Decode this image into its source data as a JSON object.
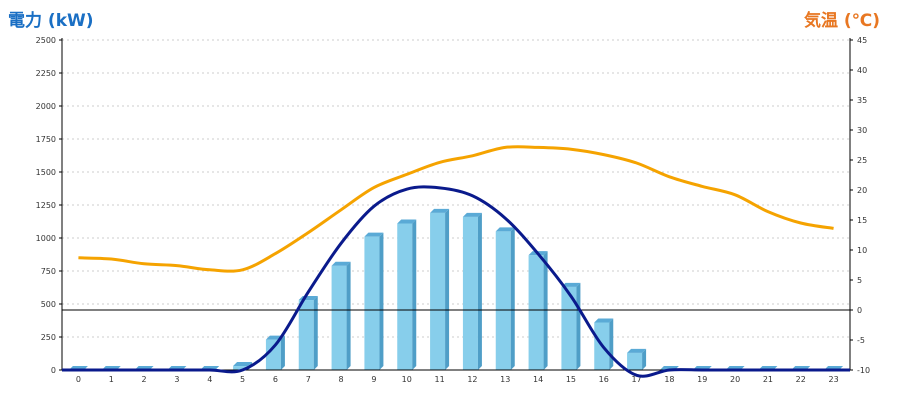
{
  "chart_data": {
    "type": "bar",
    "title_left": "電力 (kW)",
    "title_right": "気温 (℃)",
    "categories": [
      "0",
      "1",
      "2",
      "3",
      "4",
      "5",
      "6",
      "7",
      "8",
      "9",
      "10",
      "11",
      "12",
      "13",
      "14",
      "15",
      "16",
      "17",
      "18",
      "19",
      "20",
      "21",
      "22",
      "23"
    ],
    "ylim_left": [
      0,
      2500
    ],
    "yticks_left": [
      "2500",
      "2250",
      "2000",
      "1750",
      "1500",
      "1250",
      "1000",
      "750",
      "500",
      "250",
      "0"
    ],
    "ylim_right": [
      -10,
      45
    ],
    "yticks_right": [
      "45",
      "40",
      "35",
      "30",
      "25",
      "20",
      "15",
      "10",
      "5",
      "0",
      "-5",
      "-10"
    ],
    "grid": true,
    "series": [
      {
        "kind": "bar",
        "axis": "left",
        "color": "#87ceeb",
        "values": [
          0,
          0,
          0,
          0,
          0,
          30,
          230,
          530,
          790,
          1010,
          1110,
          1190,
          1160,
          1050,
          870,
          630,
          360,
          130,
          0,
          0,
          0,
          0,
          0,
          0
        ]
      },
      {
        "kind": "line",
        "axis": "left",
        "color": "#0a1a8c",
        "values": [
          0,
          0,
          0,
          0,
          0,
          0,
          190,
          590,
          960,
          1240,
          1370,
          1380,
          1320,
          1150,
          880,
          560,
          170,
          -40,
          0,
          0,
          0,
          0,
          0,
          0
        ]
      },
      {
        "kind": "line",
        "axis": "right",
        "color": "#f5a300",
        "values": [
          8.7,
          8.5,
          7.7,
          7.4,
          6.7,
          6.7,
          9.4,
          12.9,
          16.7,
          20.4,
          22.6,
          24.6,
          25.7,
          27.1,
          27.1,
          26.8,
          25.9,
          24.5,
          22.2,
          20.6,
          19.2,
          16.4,
          14.5,
          13.6
        ]
      },
      {
        "kind": "hline",
        "axis": "right",
        "color": "#000000",
        "value": 0
      }
    ]
  }
}
